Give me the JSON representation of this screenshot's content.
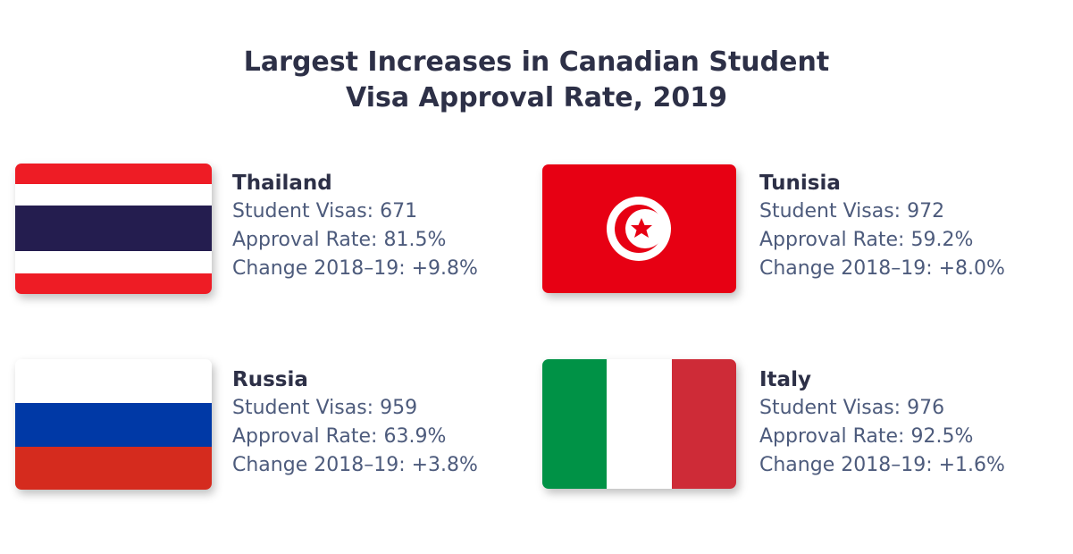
{
  "header": {
    "title_lines": [
      "Largest Increases in Canadian Student",
      "Visa Approval Rate, 2019"
    ]
  },
  "cards": [
    {
      "country": "Thailand",
      "lines": [
        "Student Visas: 671",
        "Approval Rate: 81.5%",
        "Change 2018–19: +9.8%"
      ]
    },
    {
      "country": "Tunisia",
      "lines": [
        "Student Visas: 972",
        "Approval Rate: 59.2%",
        "Change 2018–19: +8.0%"
      ]
    },
    {
      "country": "Russia",
      "lines": [
        "Student Visas: 959",
        "Approval Rate: 63.9%",
        "Change 2018–19: +3.8%"
      ]
    },
    {
      "country": "Italy",
      "lines": [
        "Student Visas: 976",
        "Approval Rate: 92.5%",
        "Change 2018–19: +1.6%"
      ]
    }
  ]
}
